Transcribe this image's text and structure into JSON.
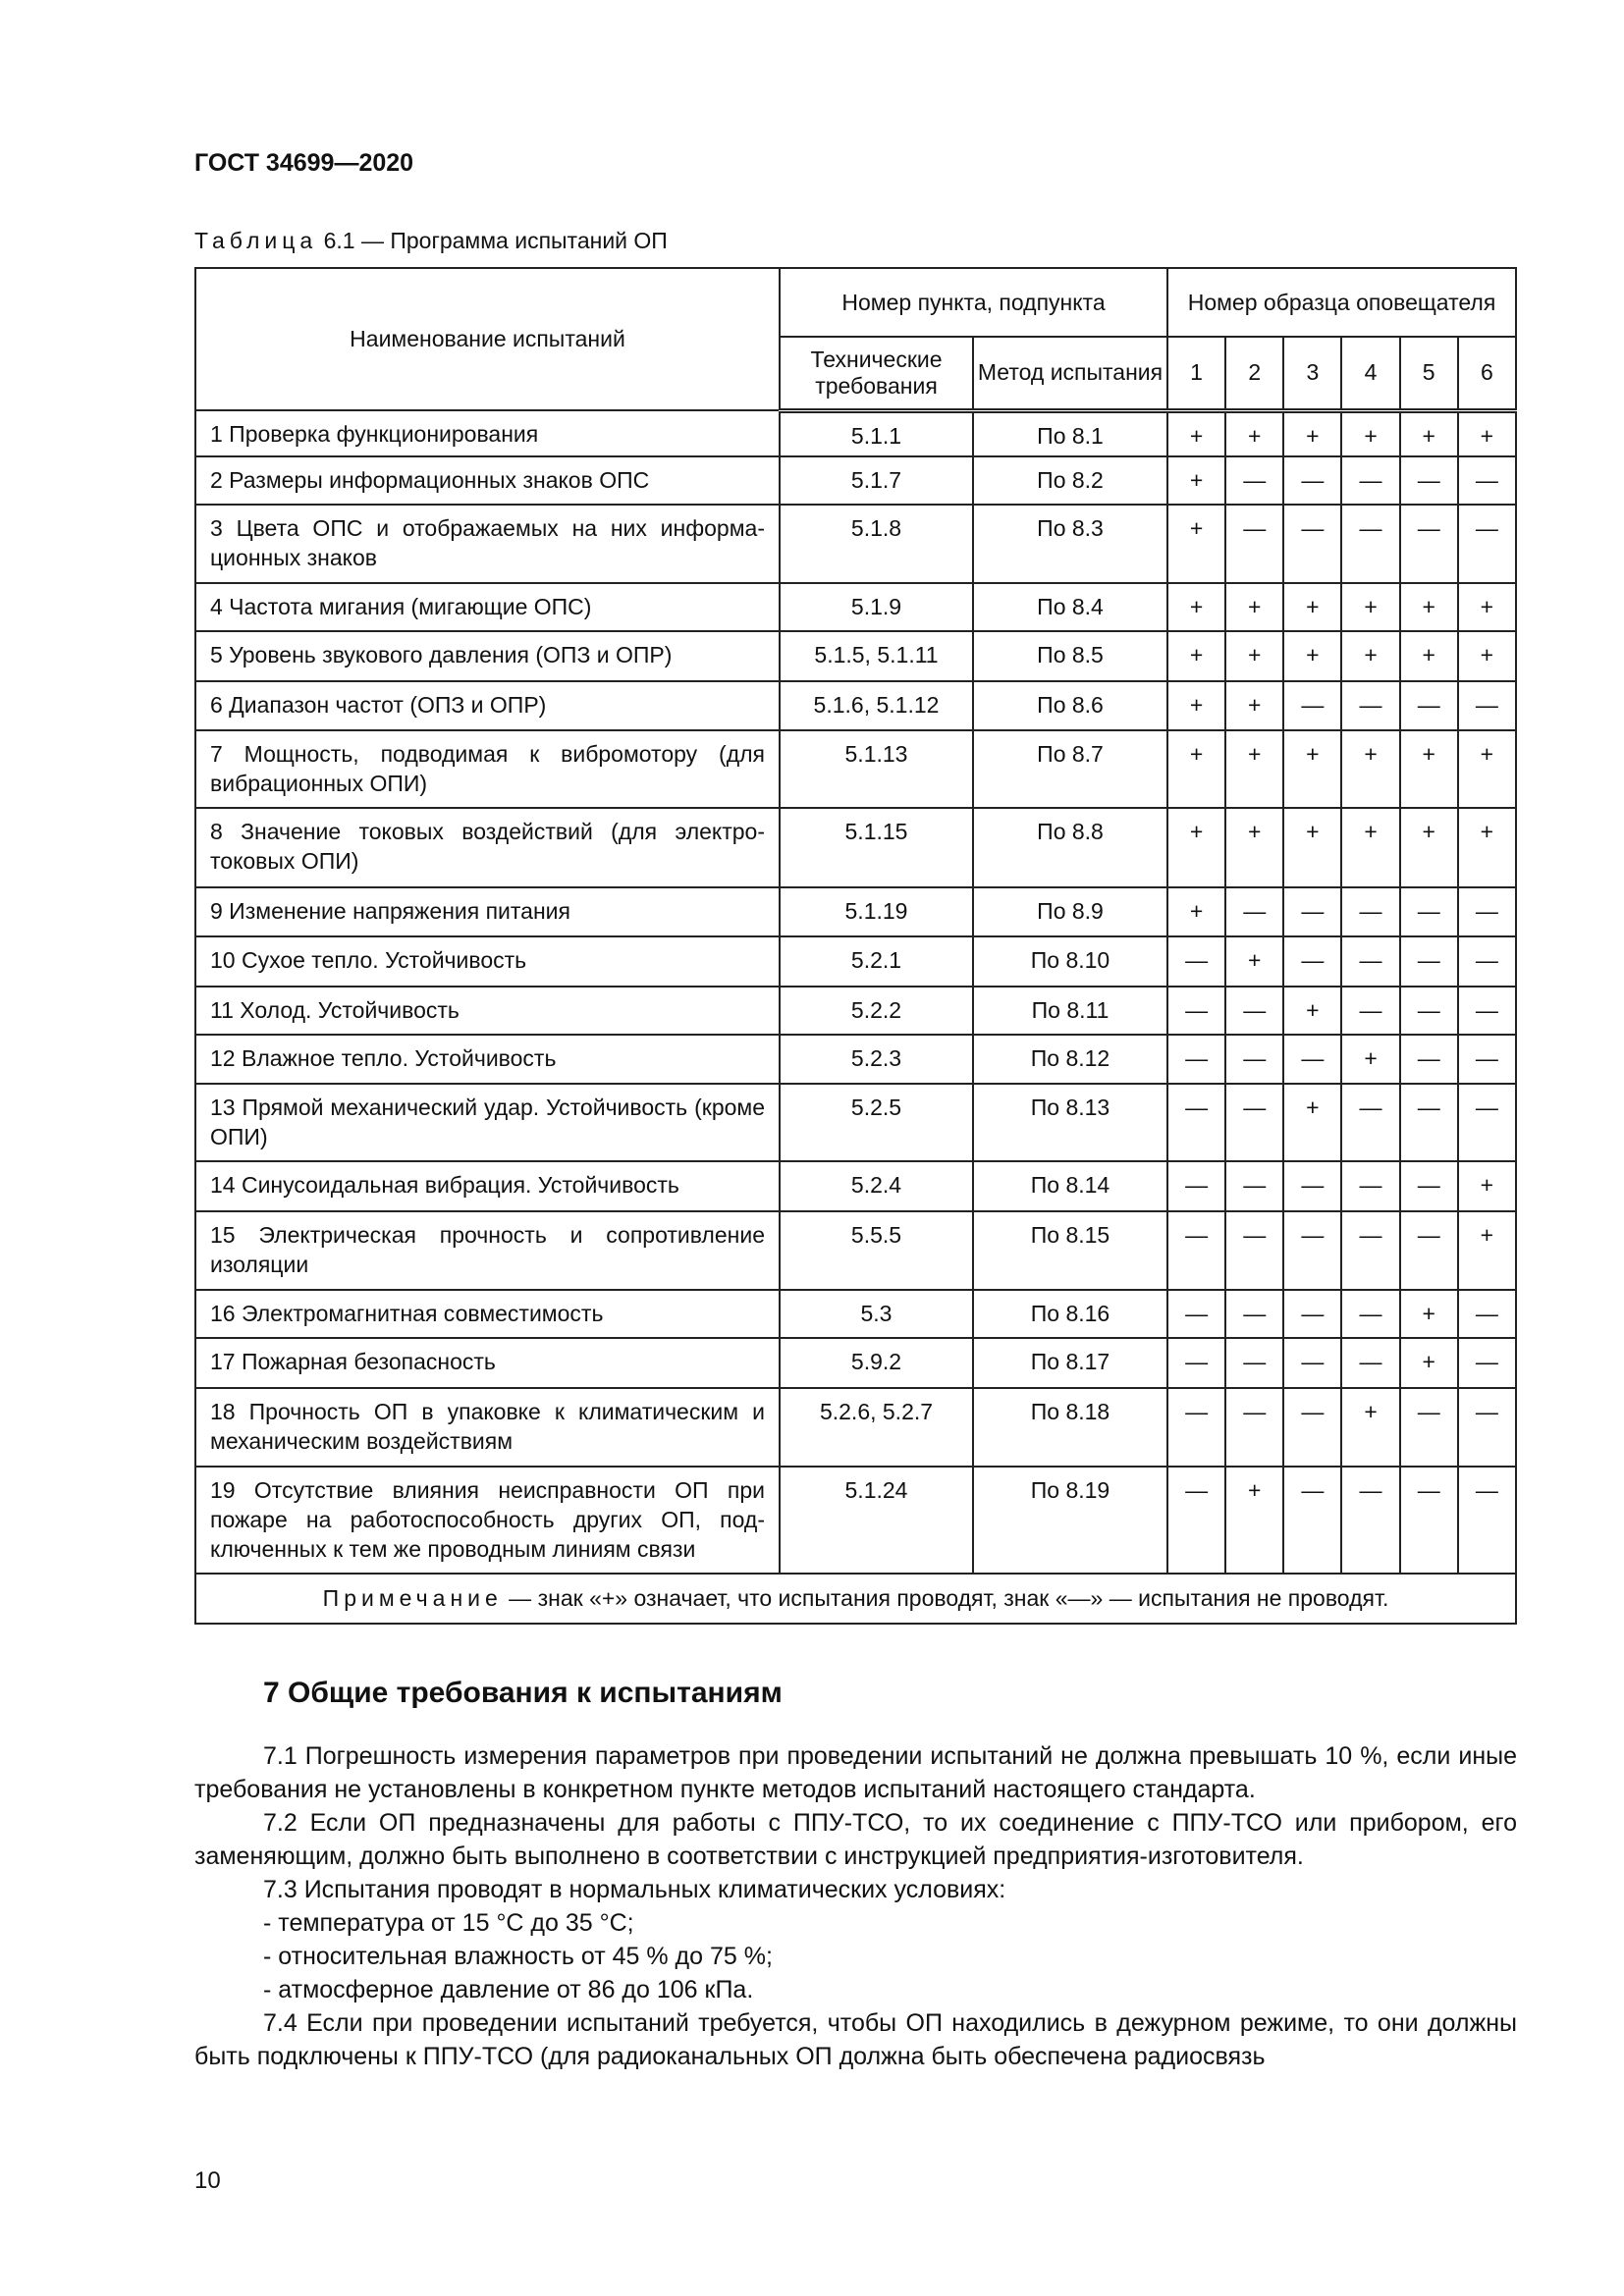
{
  "header": {
    "doc_id": "ГОСТ 34699—2020"
  },
  "caption": {
    "prefix": "Таблица",
    "rest": "6.1 — Программа испытаний ОП"
  },
  "table": {
    "col_name": "Наименование испытаний",
    "col_clause": "Номер пункта, подпункта",
    "col_tech": "Технические требования",
    "col_method": "Метод испытания",
    "col_sample": "Номер образца оповещателя",
    "samples": [
      "1",
      "2",
      "3",
      "4",
      "5",
      "6"
    ],
    "rows": [
      {
        "name": "1 Проверка функционирования",
        "tech": "5.1.1",
        "method": "По 8.1",
        "marks": [
          "+",
          "+",
          "+",
          "+",
          "+",
          "+"
        ]
      },
      {
        "name": "2 Размеры информационных знаков ОПС",
        "tech": "5.1.7",
        "method": "По 8.2",
        "marks": [
          "+",
          "—",
          "—",
          "—",
          "—",
          "—"
        ]
      },
      {
        "name": "3 Цвета ОПС и отображаемых на них информа-ционных знаков",
        "tech": "5.1.8",
        "method": "По 8.3",
        "marks": [
          "+",
          "—",
          "—",
          "—",
          "—",
          "—"
        ]
      },
      {
        "name": "4 Частота мигания (мигающие ОПС)",
        "tech": "5.1.9",
        "method": "По 8.4",
        "marks": [
          "+",
          "+",
          "+",
          "+",
          "+",
          "+"
        ]
      },
      {
        "name": "5 Уровень звукового давления (ОПЗ и ОПР)",
        "tech": "5.1.5, 5.1.11",
        "method": "По 8.5",
        "marks": [
          "+",
          "+",
          "+",
          "+",
          "+",
          "+"
        ]
      },
      {
        "name": "6 Диапазон частот (ОПЗ и ОПР)",
        "tech": "5.1.6, 5.1.12",
        "method": "По 8.6",
        "marks": [
          "+",
          "+",
          "—",
          "—",
          "—",
          "—"
        ]
      },
      {
        "name": "7 Мощность, подводимая к вибромотору (для вибрационных ОПИ)",
        "tech": "5.1.13",
        "method": "По 8.7",
        "marks": [
          "+",
          "+",
          "+",
          "+",
          "+",
          "+"
        ]
      },
      {
        "name": "8 Значение токовых воздействий (для электро-токовых ОПИ)",
        "tech": "5.1.15",
        "method": "По 8.8",
        "marks": [
          "+",
          "+",
          "+",
          "+",
          "+",
          "+"
        ]
      },
      {
        "name": "9 Изменение напряжения питания",
        "tech": "5.1.19",
        "method": "По 8.9",
        "marks": [
          "+",
          "—",
          "—",
          "—",
          "—",
          "—"
        ]
      },
      {
        "name": "10 Сухое тепло. Устойчивость",
        "tech": "5.2.1",
        "method": "По 8.10",
        "marks": [
          "—",
          "+",
          "—",
          "—",
          "—",
          "—"
        ]
      },
      {
        "name": "11 Холод. Устойчивость",
        "tech": "5.2.2",
        "method": "По 8.11",
        "marks": [
          "—",
          "—",
          "+",
          "—",
          "—",
          "—"
        ]
      },
      {
        "name": "12 Влажное тепло. Устойчивость",
        "tech": "5.2.3",
        "method": "По 8.12",
        "marks": [
          "—",
          "—",
          "—",
          "+",
          "—",
          "—"
        ]
      },
      {
        "name": "13 Прямой механический удар. Устойчивость (кроме ОПИ)",
        "tech": "5.2.5",
        "method": "По 8.13",
        "marks": [
          "—",
          "—",
          "+",
          "—",
          "—",
          "—"
        ]
      },
      {
        "name": "14 Синусоидальная вибрация. Устойчивость",
        "tech": "5.2.4",
        "method": "По 8.14",
        "marks": [
          "—",
          "—",
          "—",
          "—",
          "—",
          "+"
        ]
      },
      {
        "name": "15 Электрическая прочность и сопротивление изоляции",
        "tech": "5.5.5",
        "method": "По 8.15",
        "marks": [
          "—",
          "—",
          "—",
          "—",
          "—",
          "+"
        ]
      },
      {
        "name": "16 Электромагнитная совместимость",
        "tech": "5.3",
        "method": "По 8.16",
        "marks": [
          "—",
          "—",
          "—",
          "—",
          "+",
          "—"
        ]
      },
      {
        "name": "17 Пожарная безопасность",
        "tech": "5.9.2",
        "method": "По 8.17",
        "marks": [
          "—",
          "—",
          "—",
          "—",
          "+",
          "—"
        ]
      },
      {
        "name": "18 Прочность ОП в упаковке к климатическим и механическим воздействиям",
        "tech": "5.2.6, 5.2.7",
        "method": "По 8.18",
        "marks": [
          "—",
          "—",
          "—",
          "+",
          "—",
          "—"
        ]
      },
      {
        "name": "19 Отсутствие влияния неисправности ОП при пожаре на работоспособность других ОП, под-ключенных к тем же проводным линиям связи",
        "tech": "5.1.24",
        "method": "По 8.19",
        "marks": [
          "—",
          "+",
          "—",
          "—",
          "—",
          "—"
        ]
      }
    ],
    "note_prefix": "Примечание",
    "note_text": " — знак «+» означает, что испытания проводят, знак «—» — испытания не проводят."
  },
  "section": {
    "title": "7 Общие требования к испытаниям",
    "paragraphs": [
      "7.1 Погрешность измерения параметров при проведении испытаний не должна превышать 10 %, если иные требования не установлены в конкретном пункте методов испытаний настоящего стандарта.",
      "7.2 Если ОП предназначены для работы с ППУ-ТСО, то их соединение с ППУ-ТСО или прибором, его заменяющим, должно быть выполнено в соответствии с инструкцией предприятия-изготовителя.",
      "7.3 Испытания проводят в нормальных климатических условиях:"
    ],
    "list": [
      "- температура от 15 °С до 35 °С;",
      "- относительная влажность от 45 % до 75 %;",
      "- атмосферное давление от 86 до 106 кПа."
    ],
    "last": "7.4 Если при проведении испытаний требуется, чтобы ОП находились в дежурном режиме, то они должны быть подключены к ППУ-ТСО (для радиоканальных ОП должна быть обеспечена радиосвязь"
  },
  "page_number": "10"
}
